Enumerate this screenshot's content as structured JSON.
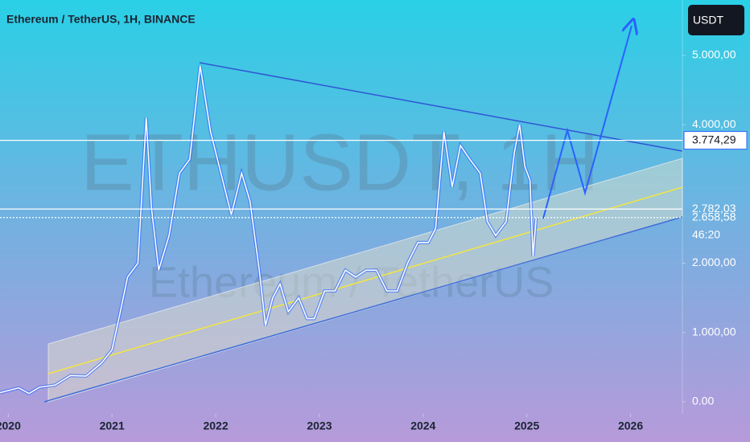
{
  "chart_data": {
    "type": "line",
    "title": "Ethereum / TetherUS, 1H, BINANCE",
    "watermark": "ETHUSDT, 1H",
    "watermark_subtitle": "Ethereum / TetherUS",
    "currency_button": "USDT",
    "countdown": "46:20",
    "series": [
      {
        "name": "ETHUSDT",
        "color": "#ffffff",
        "x": [
          2019.92,
          2020.1,
          2020.2,
          2020.3,
          2020.45,
          2020.6,
          2020.75,
          2020.9,
          2021.0,
          2021.08,
          2021.15,
          2021.25,
          2021.33,
          2021.38,
          2021.45,
          2021.55,
          2021.65,
          2021.75,
          2021.85,
          2021.95,
          2022.05,
          2022.15,
          2022.25,
          2022.33,
          2022.42,
          2022.48,
          2022.55,
          2022.62,
          2022.7,
          2022.8,
          2022.88,
          2022.95,
          2023.05,
          2023.15,
          2023.25,
          2023.35,
          2023.45,
          2023.55,
          2023.65,
          2023.75,
          2023.85,
          2023.95,
          2024.05,
          2024.12,
          2024.2,
          2024.28,
          2024.36,
          2024.45,
          2024.55,
          2024.62,
          2024.7,
          2024.8,
          2024.88,
          2024.93,
          2024.98,
          2025.03,
          2025.06,
          2025.09
        ],
        "values": [
          130,
          200,
          120,
          210,
          240,
          380,
          370,
          560,
          750,
          1300,
          1800,
          2000,
          4100,
          2800,
          1900,
          2400,
          3300,
          3500,
          4850,
          3900,
          3300,
          2700,
          3300,
          2900,
          1900,
          1100,
          1500,
          1700,
          1300,
          1500,
          1200,
          1200,
          1600,
          1600,
          1900,
          1800,
          1900,
          1900,
          1600,
          1600,
          2000,
          2300,
          2300,
          2500,
          3900,
          3100,
          3700,
          3500,
          3300,
          2600,
          2400,
          2600,
          3600,
          4000,
          3400,
          3200,
          2100,
          2658.58
        ]
      }
    ],
    "xlim": [
      2019.92,
      2026.5
    ],
    "xticks": [
      2020,
      2021,
      2022,
      2023,
      2024,
      2025,
      2026
    ],
    "ylim": [
      -175,
      5800
    ],
    "yticks": [
      {
        "value": 0,
        "label": "0.00"
      },
      {
        "value": 1000,
        "label": "1.000,00"
      },
      {
        "value": 2000,
        "label": "2.000,00"
      },
      {
        "value": 4000,
        "label": "4.000,00"
      },
      {
        "value": 5000,
        "label": "5.000,00"
      }
    ],
    "price_lines": [
      {
        "value": 3774.29,
        "label": "3.774,29",
        "style": "solid",
        "boxed": true
      },
      {
        "value": 2782.03,
        "label": "2.782,03",
        "style": "solid",
        "boxed": false
      },
      {
        "value": 2658.58,
        "label": "2.658,58",
        "style": "dotted",
        "boxed": false
      }
    ]
  }
}
